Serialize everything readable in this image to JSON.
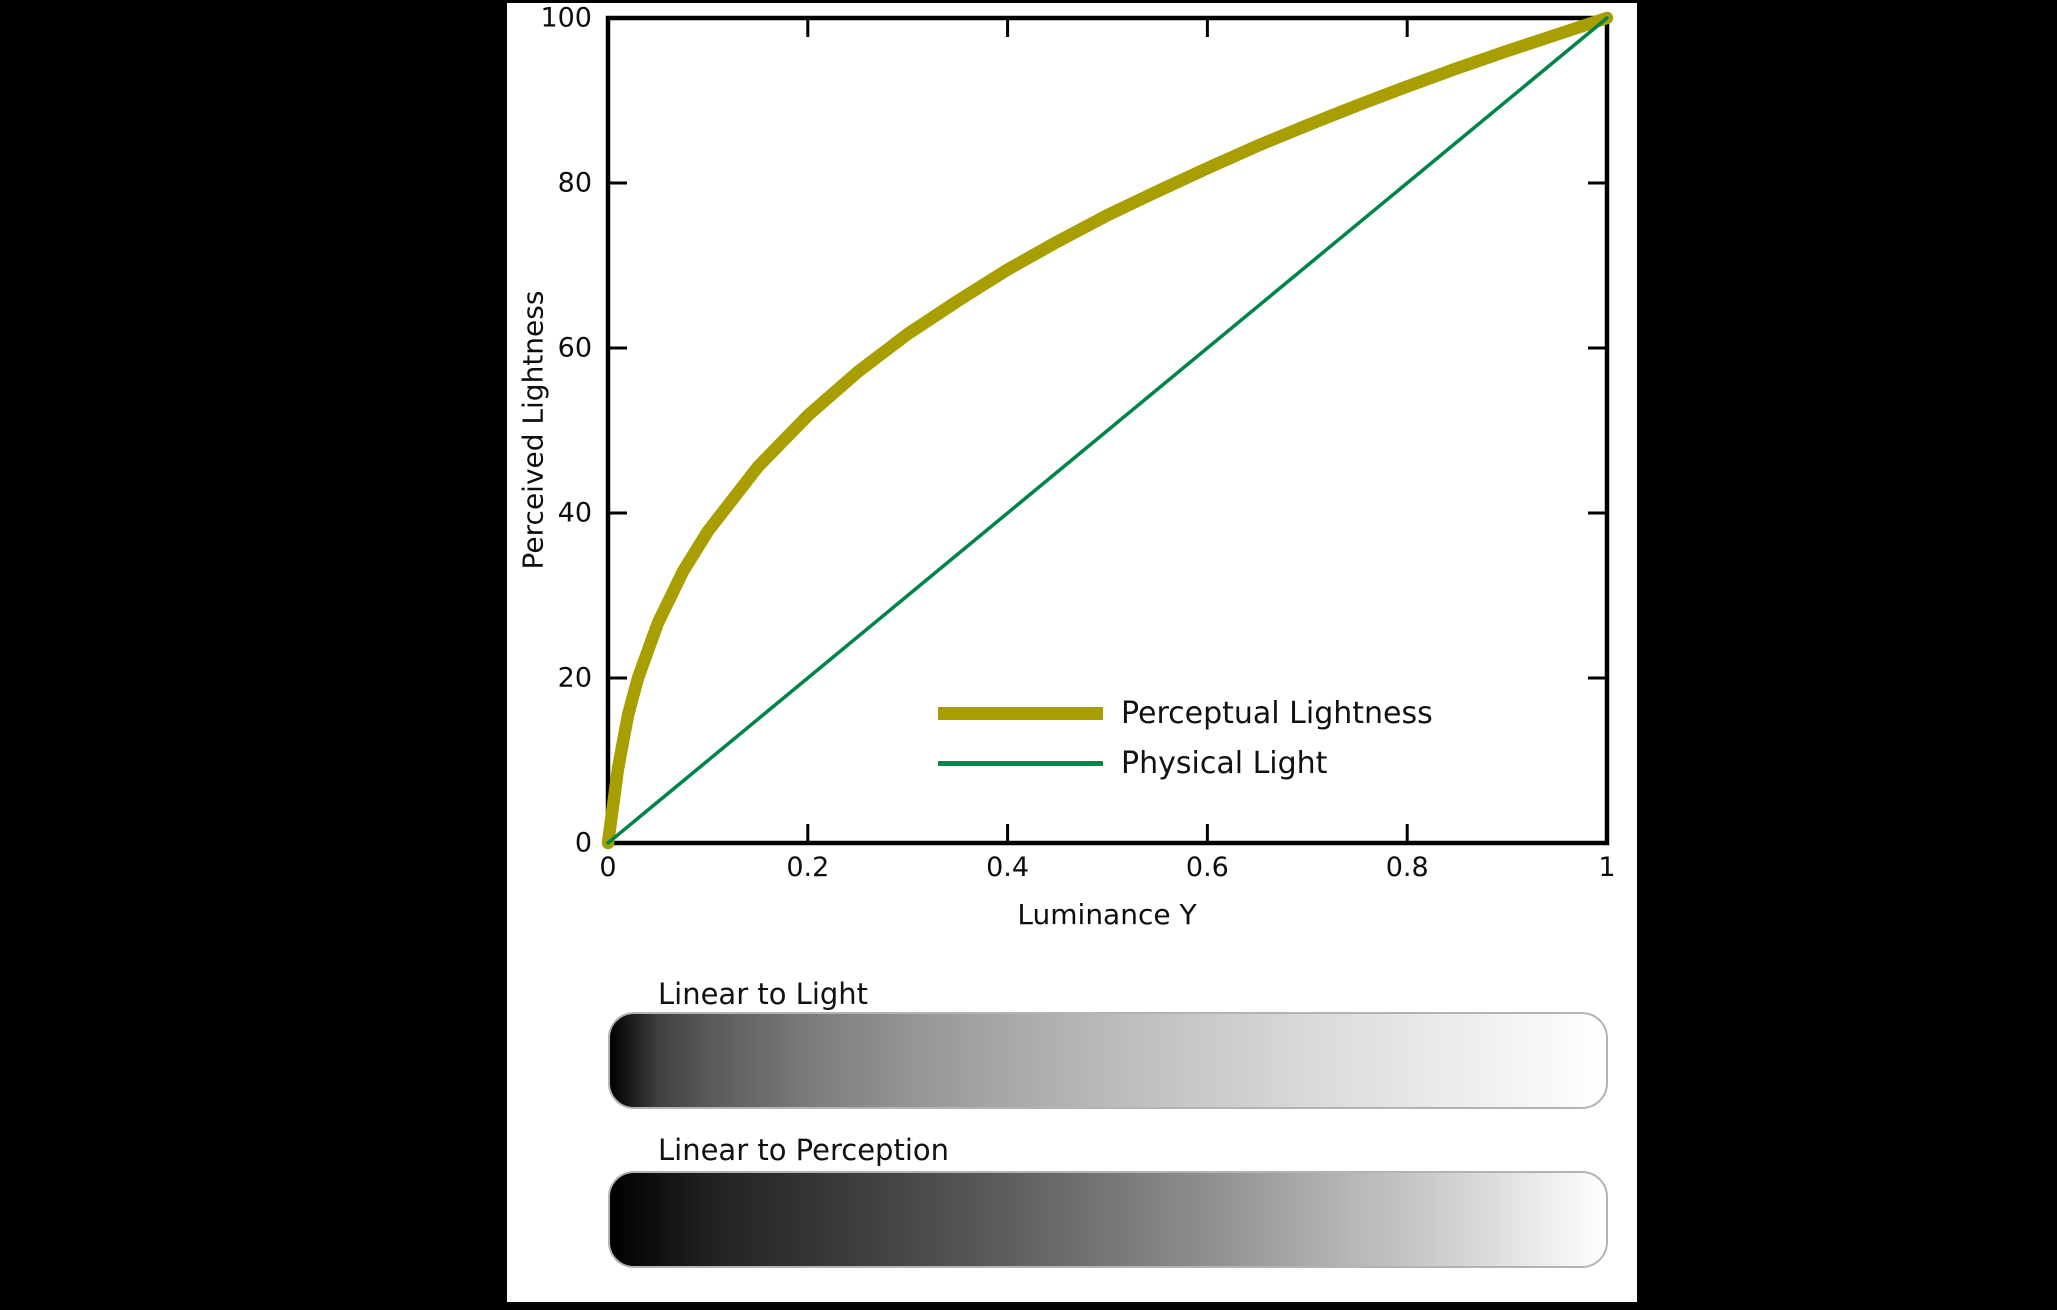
{
  "page": {
    "background_color": "#000000",
    "panel_color": "#ffffff"
  },
  "chart_data": {
    "type": "line",
    "title": "",
    "xlabel": "Luminance Y",
    "ylabel": "Perceived Lightness",
    "xlim": [
      0,
      1
    ],
    "ylim": [
      0,
      100
    ],
    "x_ticks": [
      0,
      0.2,
      0.4,
      0.6,
      0.8,
      1
    ],
    "x_tick_labels": [
      "0",
      "0.2",
      "0.4",
      "0.6",
      "0.8",
      "1"
    ],
    "y_ticks": [
      0,
      20,
      40,
      60,
      80,
      100
    ],
    "y_tick_labels": [
      "0",
      "20",
      "40",
      "60",
      "80",
      "100"
    ],
    "grid": false,
    "tick_direction": "in",
    "legend_position": "inside-lower-right",
    "axis_color": "#000000",
    "series": [
      {
        "name": "Perceptual Lightness",
        "color": "#a89e00",
        "line_width": 12.5,
        "x": [
          0,
          0.005,
          0.01,
          0.02,
          0.03,
          0.05,
          0.075,
          0.1,
          0.15,
          0.2,
          0.25,
          0.3,
          0.35,
          0.4,
          0.45,
          0.5,
          0.55,
          0.6,
          0.65,
          0.7,
          0.75,
          0.8,
          0.85,
          0.9,
          0.95,
          1.0
        ],
        "y": [
          0,
          4.5,
          9.0,
          15.5,
          20.0,
          26.7,
          32.9,
          37.8,
          45.6,
          51.8,
          57.1,
          61.7,
          65.7,
          69.5,
          72.9,
          76.1,
          79.0,
          81.8,
          84.5,
          87.0,
          89.4,
          91.7,
          93.9,
          96.0,
          98.0,
          100
        ]
      },
      {
        "name": "Physical Light",
        "color": "#008449",
        "line_width": 3.5,
        "x": [
          0,
          1
        ],
        "y": [
          0,
          100
        ]
      }
    ]
  },
  "gradient_bars": [
    {
      "label": "Linear to Light",
      "stops": [
        [
          0,
          0
        ],
        [
          0.05,
          65
        ],
        [
          0.1,
          90
        ],
        [
          0.2,
          123
        ],
        [
          0.3,
          148
        ],
        [
          0.4,
          168
        ],
        [
          0.5,
          186
        ],
        [
          0.6,
          202
        ],
        [
          0.7,
          217
        ],
        [
          0.8,
          230
        ],
        [
          0.9,
          243
        ],
        [
          1,
          255
        ]
      ]
    },
    {
      "label": "Linear to Perception",
      "stops": [
        [
          0,
          0
        ],
        [
          0.1,
          33
        ],
        [
          0.2,
          52
        ],
        [
          0.3,
          72
        ],
        [
          0.4,
          94
        ],
        [
          0.5,
          118
        ],
        [
          0.6,
          143
        ],
        [
          0.7,
          170
        ],
        [
          0.8,
          197
        ],
        [
          0.9,
          225
        ],
        [
          1,
          255
        ]
      ]
    }
  ]
}
